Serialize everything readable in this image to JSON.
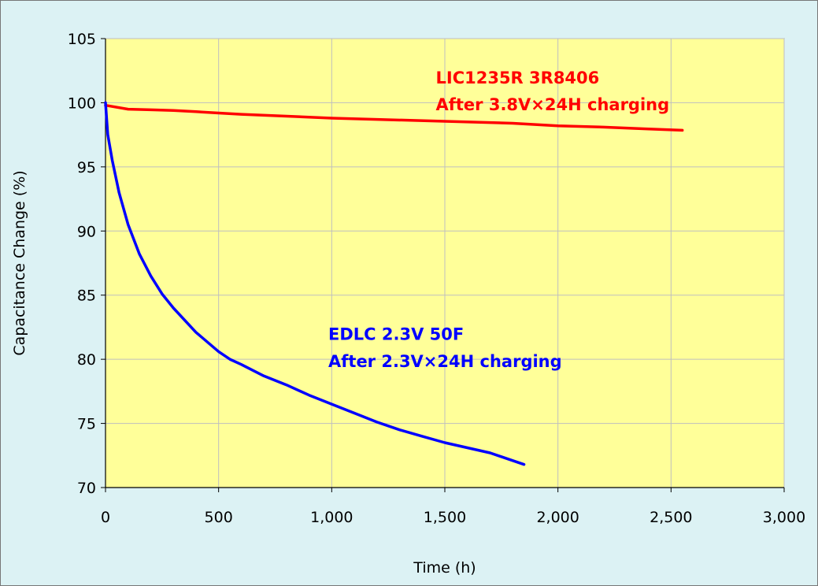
{
  "chart_data": {
    "type": "line",
    "title": "",
    "xlabel": "Time (h)",
    "ylabel": "Capacitance Change (%)",
    "xlim": [
      0,
      3000
    ],
    "ylim": [
      70,
      105
    ],
    "grid": true,
    "x_ticks": [
      0,
      500,
      1000,
      1500,
      2000,
      2500,
      3000
    ],
    "x_tick_labels": [
      "0",
      "500",
      "1,000",
      "1,500",
      "2,000",
      "2,500",
      "3,000"
    ],
    "y_ticks": [
      70,
      75,
      80,
      85,
      90,
      95,
      100,
      105
    ],
    "y_tick_labels": [
      "70",
      "75",
      "80",
      "85",
      "90",
      "95",
      "100",
      "105"
    ],
    "colors": {
      "plot_background": "#ffff99",
      "chart_background": "#dcf2f4",
      "grid": "#bfbfbf"
    },
    "series": [
      {
        "color": "#ff0000",
        "x": [
          0,
          100,
          200,
          300,
          400,
          500,
          600,
          800,
          1000,
          1200,
          1500,
          1800,
          2000,
          2200,
          2400,
          2550
        ],
        "y": [
          99.8,
          99.5,
          99.45,
          99.4,
          99.3,
          99.2,
          99.1,
          98.95,
          98.8,
          98.7,
          98.55,
          98.4,
          98.2,
          98.1,
          97.95,
          97.85
        ]
      },
      {
        "color": "#0000ff",
        "x": [
          0,
          10,
          30,
          60,
          100,
          150,
          200,
          250,
          300,
          400,
          500,
          550,
          600,
          700,
          800,
          900,
          1000,
          1100,
          1200,
          1300,
          1400,
          1500,
          1600,
          1700,
          1850
        ],
        "y": [
          100,
          97.5,
          95.5,
          93,
          90.5,
          88.2,
          86.5,
          85.1,
          84,
          82.1,
          80.6,
          80,
          79.6,
          78.7,
          78,
          77.2,
          76.5,
          75.8,
          75.1,
          74.5,
          74,
          73.5,
          73.1,
          72.7,
          71.8
        ]
      }
    ],
    "annotations": [
      {
        "line1": "LIC1235R 3R8406",
        "line2": "After 3.8V×24H charging",
        "color": "#ff0000",
        "x": 1460,
        "y1": 101.5,
        "y2": 99.4
      },
      {
        "line1": "EDLC 2.3V 50F",
        "line2": "After 2.3V×24H charging",
        "color": "#0000ff",
        "x": 985,
        "y1": 81.5,
        "y2": 79.4
      }
    ]
  }
}
